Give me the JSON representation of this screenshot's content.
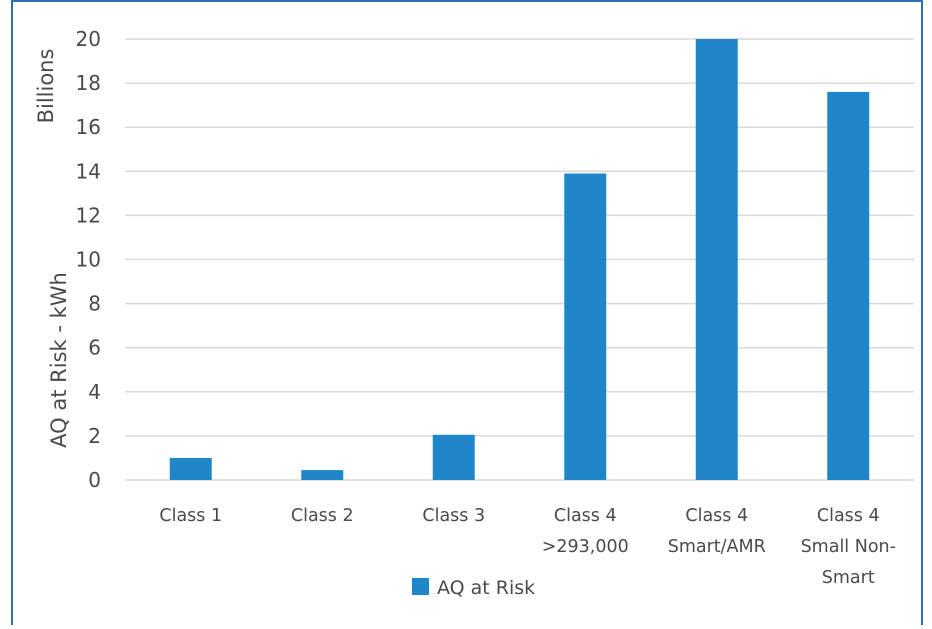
{
  "chart_data": {
    "type": "bar",
    "categories": [
      [
        "Class 1"
      ],
      [
        "Class 2"
      ],
      [
        "Class 3"
      ],
      [
        "Class 4",
        ">293,000"
      ],
      [
        "Class 4",
        "Smart/AMR"
      ],
      [
        "Class 4",
        "Small Non-",
        "Smart"
      ]
    ],
    "series": [
      {
        "name": "AQ at Risk",
        "values": [
          1.0,
          0.45,
          2.05,
          13.9,
          20.0,
          17.6
        ],
        "color": "#1f87c9"
      }
    ],
    "ylabel": "AQ at Risk - kWh",
    "yunit_label": "Billions",
    "ylim": [
      0,
      20
    ],
    "yticks": [
      0,
      2,
      4,
      6,
      8,
      10,
      12,
      14,
      16,
      18,
      20
    ],
    "grid": true,
    "legend": "bottom",
    "gridline_color": "#d9d9d9",
    "text_color": "#4a4a4a",
    "frame_color": "#2f6fb6"
  }
}
